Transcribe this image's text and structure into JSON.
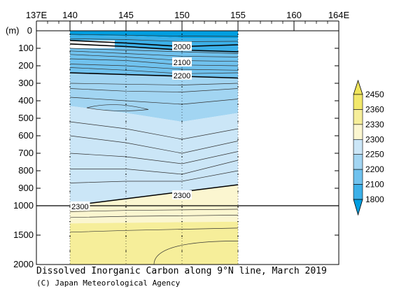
{
  "chart_data": {
    "type": "heatmap",
    "title": "Dissolved Inorganic Carbon along 9°N line, March 2019",
    "credit": "(C) Japan Meteorological Agency",
    "x_axis": {
      "ticks": [
        137,
        140,
        145,
        150,
        155,
        160,
        164
      ],
      "tick_labels": [
        "137E",
        "140",
        "145",
        "150",
        "155",
        "160",
        "164E"
      ],
      "range": [
        137,
        164
      ]
    },
    "y_axis": {
      "unit_label": "(m)",
      "upper_ticks": [
        0,
        100,
        200,
        300,
        400,
        500,
        600,
        700,
        800,
        900,
        1000
      ],
      "upper_tick_labels": [
        "0",
        "100",
        "200",
        "300",
        "400",
        "500",
        "600",
        "700",
        "800",
        "900",
        "1000"
      ],
      "lower_ticks": [
        1500,
        2000
      ],
      "lower_tick_labels": [
        "1500",
        "2000"
      ],
      "range": [
        0,
        2000
      ],
      "break_depth": 1000
    },
    "data_extent": {
      "lon": [
        140,
        155
      ]
    },
    "station_lons": [
      140,
      145,
      150,
      155
    ],
    "colorbar": {
      "levels": [
        1800,
        2100,
        2200,
        2250,
        2300,
        2330,
        2360,
        2450
      ],
      "labels": [
        "1800",
        "2100",
        "2200",
        "2250",
        "2300",
        "2330",
        "2360",
        "2450"
      ],
      "colors": [
        "#009ee0",
        "#3cb0e8",
        "#70c2ee",
        "#a2d5f2",
        "#cbe6f7",
        "#fbf6d0",
        "#f6ee9a",
        "#f2e86b",
        "#f0e55a"
      ]
    },
    "contour_labels": [
      {
        "text": "2000",
        "lon": 150,
        "depth": 90
      },
      {
        "text": "2100",
        "lon": 150,
        "depth": 180
      },
      {
        "text": "2200",
        "lon": 150,
        "depth": 255
      },
      {
        "text": "2300",
        "lon": 150,
        "depth": 940
      },
      {
        "text": "2300",
        "lon": 140.9,
        "depth": 1010
      }
    ]
  }
}
